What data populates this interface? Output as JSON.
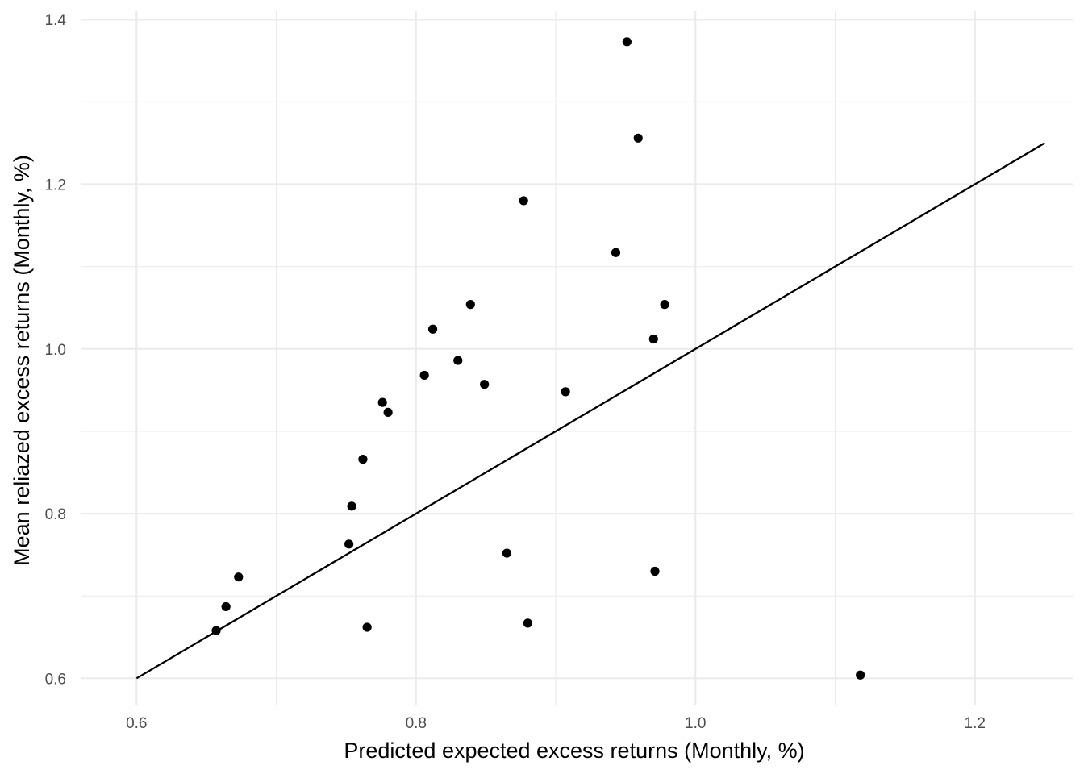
{
  "chart_data": {
    "type": "scatter",
    "title": "",
    "xlabel": "Predicted expected excess returns (Monthly, %)",
    "ylabel": "Mean reliazed excess returns (Monthly, %)",
    "xlim": [
      0.56,
      1.27
    ],
    "ylim": [
      0.568,
      1.41
    ],
    "x_ticks": [
      0.6,
      0.8,
      1.0,
      1.2
    ],
    "x_tick_labels": [
      "0.6",
      "0.8",
      "1.0",
      "1.2"
    ],
    "x_minor_ticks": [
      0.7,
      0.9,
      1.1
    ],
    "y_ticks": [
      0.6,
      0.8,
      1.0,
      1.2,
      1.4
    ],
    "y_tick_labels": [
      "0.6",
      "0.8",
      "1.0",
      "1.2",
      "1.4"
    ],
    "y_minor_ticks": [
      0.7,
      0.9,
      1.1,
      1.3
    ],
    "grid": true,
    "reference_line": {
      "x": [
        0.6,
        1.25
      ],
      "y": [
        0.6,
        1.25
      ]
    },
    "points": [
      {
        "x": 0.657,
        "y": 0.658
      },
      {
        "x": 0.664,
        "y": 0.687
      },
      {
        "x": 0.673,
        "y": 0.723
      },
      {
        "x": 0.752,
        "y": 0.763
      },
      {
        "x": 0.754,
        "y": 0.809
      },
      {
        "x": 0.762,
        "y": 0.866
      },
      {
        "x": 0.765,
        "y": 0.662
      },
      {
        "x": 0.776,
        "y": 0.935
      },
      {
        "x": 0.78,
        "y": 0.923
      },
      {
        "x": 0.806,
        "y": 0.968
      },
      {
        "x": 0.812,
        "y": 1.024
      },
      {
        "x": 0.83,
        "y": 0.986
      },
      {
        "x": 0.839,
        "y": 1.054
      },
      {
        "x": 0.849,
        "y": 0.957
      },
      {
        "x": 0.865,
        "y": 0.752
      },
      {
        "x": 0.877,
        "y": 1.18
      },
      {
        "x": 0.88,
        "y": 0.667
      },
      {
        "x": 0.907,
        "y": 0.948
      },
      {
        "x": 0.943,
        "y": 1.117
      },
      {
        "x": 0.951,
        "y": 1.373
      },
      {
        "x": 0.959,
        "y": 1.256
      },
      {
        "x": 0.97,
        "y": 1.012
      },
      {
        "x": 0.971,
        "y": 0.73
      },
      {
        "x": 0.978,
        "y": 1.054
      },
      {
        "x": 1.118,
        "y": 0.604
      }
    ]
  }
}
